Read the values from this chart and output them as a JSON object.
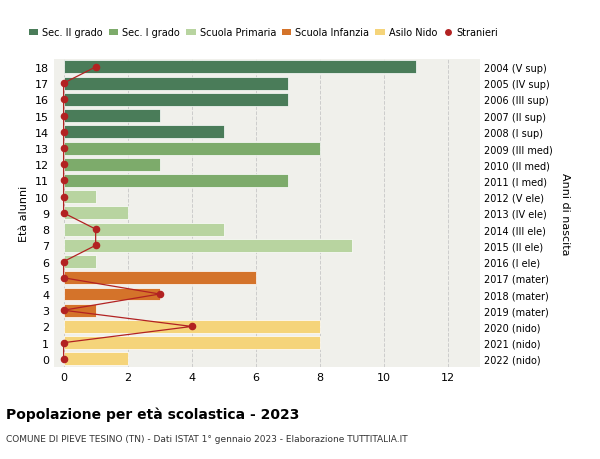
{
  "ages": [
    18,
    17,
    16,
    15,
    14,
    13,
    12,
    11,
    10,
    9,
    8,
    7,
    6,
    5,
    4,
    3,
    2,
    1,
    0
  ],
  "right_labels_by_age": {
    "18": "2004 (V sup)",
    "17": "2005 (IV sup)",
    "16": "2006 (III sup)",
    "15": "2007 (II sup)",
    "14": "2008 (I sup)",
    "13": "2009 (III med)",
    "12": "2010 (II med)",
    "11": "2011 (I med)",
    "10": "2012 (V ele)",
    "9": "2013 (IV ele)",
    "8": "2014 (III ele)",
    "7": "2015 (II ele)",
    "6": "2016 (I ele)",
    "5": "2017 (mater)",
    "4": "2018 (mater)",
    "3": "2019 (mater)",
    "2": "2020 (nido)",
    "1": "2021 (nido)",
    "0": "2022 (nido)"
  },
  "bar_values_by_age": {
    "18": 11,
    "17": 7,
    "16": 7,
    "15": 3,
    "14": 5,
    "13": 8,
    "12": 3,
    "11": 7,
    "10": 1,
    "9": 2,
    "8": 5,
    "7": 9,
    "6": 1,
    "5": 6,
    "4": 3,
    "3": 1,
    "2": 8,
    "1": 8,
    "0": 2
  },
  "bar_colors_by_age": {
    "18": "#4a7c59",
    "17": "#4a7c59",
    "16": "#4a7c59",
    "15": "#4a7c59",
    "14": "#4a7c59",
    "13": "#7dab6b",
    "12": "#7dab6b",
    "11": "#7dab6b",
    "10": "#b8d4a0",
    "9": "#b8d4a0",
    "8": "#b8d4a0",
    "7": "#b8d4a0",
    "6": "#b8d4a0",
    "5": "#d4732a",
    "4": "#d4732a",
    "3": "#d4732a",
    "2": "#f5d47a",
    "1": "#f5d47a",
    "0": "#f5d47a"
  },
  "stranieri_by_age": {
    "18": 1,
    "17": 0,
    "16": 0,
    "15": 0,
    "14": 0,
    "13": 0,
    "12": 0,
    "11": 0,
    "10": 0,
    "9": 0,
    "8": 1,
    "7": 1,
    "6": 0,
    "5": 0,
    "4": 3,
    "3": 0,
    "2": 4,
    "1": 0,
    "0": 0
  },
  "legend_labels": [
    "Sec. II grado",
    "Sec. I grado",
    "Scuola Primaria",
    "Scuola Infanzia",
    "Asilo Nido",
    "Stranieri"
  ],
  "legend_colors": [
    "#4a7c59",
    "#7dab6b",
    "#b8d4a0",
    "#d4732a",
    "#f5d47a",
    "#b22222"
  ],
  "title": "Popolazione per età scolastica - 2023",
  "subtitle": "COMUNE DI PIEVE TESINO (TN) - Dati ISTAT 1° gennaio 2023 - Elaborazione TUTTITALIA.IT",
  "ylabel": "Età alunni",
  "right_ylabel": "Anni di nascita",
  "xlim": [
    -0.3,
    13
  ],
  "xticks": [
    0,
    2,
    4,
    6,
    8,
    10,
    12
  ],
  "bg_color": "#ffffff",
  "bar_bg_color": "#f0f0eb"
}
